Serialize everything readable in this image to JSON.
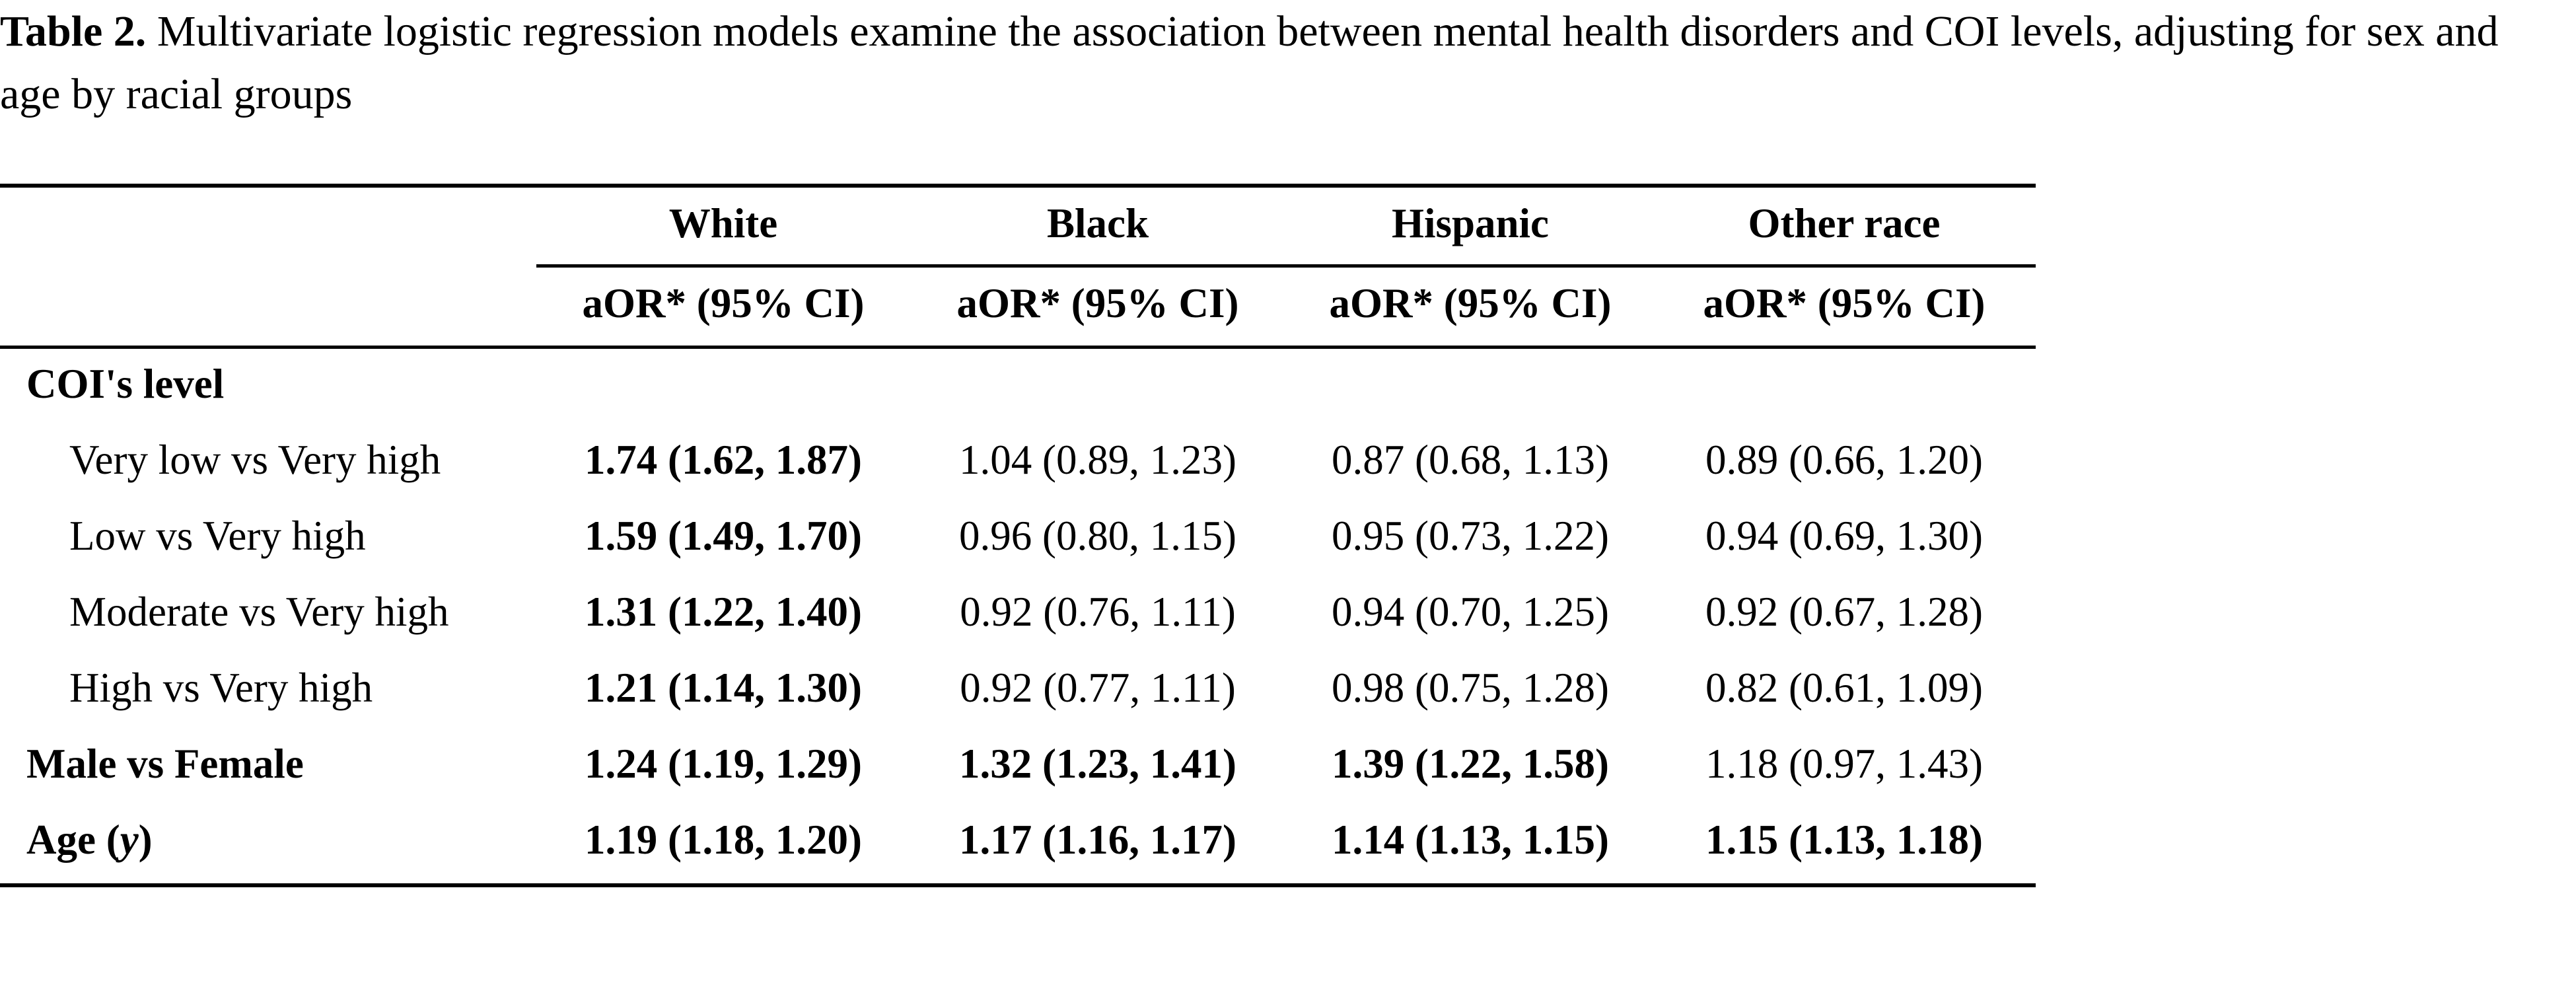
{
  "caption": {
    "label": "Table 2.",
    "text": " Multivariate logistic regression models examine the association between mental health disorders and COI levels, adjusting for sex and age by racial groups"
  },
  "table": {
    "columns": [
      "White",
      "Black",
      "Hispanic",
      "Other race"
    ],
    "subheader": "aOR* (95% CI)",
    "section_label": "COI's level",
    "rows": [
      {
        "label": "Very low vs Very high",
        "cells": [
          {
            "text": "1.74 (1.62, 1.87)",
            "bold": true
          },
          {
            "text": "1.04 (0.89, 1.23)",
            "bold": false
          },
          {
            "text": "0.87 (0.68, 1.13)",
            "bold": false
          },
          {
            "text": "0.89 (0.66, 1.20)",
            "bold": false
          }
        ]
      },
      {
        "label": "Low vs Very high",
        "cells": [
          {
            "text": "1.59 (1.49, 1.70)",
            "bold": true
          },
          {
            "text": "0.96 (0.80, 1.15)",
            "bold": false
          },
          {
            "text": "0.95 (0.73, 1.22)",
            "bold": false
          },
          {
            "text": "0.94 (0.69, 1.30)",
            "bold": false
          }
        ]
      },
      {
        "label": "Moderate vs Very high",
        "cells": [
          {
            "text": "1.31 (1.22, 1.40)",
            "bold": true
          },
          {
            "text": "0.92 (0.76, 1.11)",
            "bold": false
          },
          {
            "text": "0.94 (0.70, 1.25)",
            "bold": false
          },
          {
            "text": "0.92 (0.67, 1.28)",
            "bold": false
          }
        ]
      },
      {
        "label": "High vs Very high",
        "cells": [
          {
            "text": "1.21 (1.14, 1.30)",
            "bold": true
          },
          {
            "text": "0.92 (0.77, 1.11)",
            "bold": false
          },
          {
            "text": "0.98 (0.75, 1.28)",
            "bold": false
          },
          {
            "text": "0.82 (0.61, 1.09)",
            "bold": false
          }
        ]
      },
      {
        "label": "Male vs Female",
        "cells": [
          {
            "text": "1.24 (1.19, 1.29)",
            "bold": true
          },
          {
            "text": "1.32 (1.23, 1.41)",
            "bold": true
          },
          {
            "text": "1.39 (1.22, 1.58)",
            "bold": true
          },
          {
            "text": "1.18 (0.97, 1.43)",
            "bold": false
          }
        ]
      },
      {
        "label_main": "Age (",
        "label_var": "y",
        "label_end": ")",
        "cells": [
          {
            "text": "1.19 (1.18, 1.20)",
            "bold": true
          },
          {
            "text": "1.17 (1.16, 1.17)",
            "bold": true
          },
          {
            "text": "1.14 (1.13, 1.15)",
            "bold": true
          },
          {
            "text": "1.15 (1.13, 1.18)",
            "bold": true
          }
        ]
      }
    ]
  }
}
